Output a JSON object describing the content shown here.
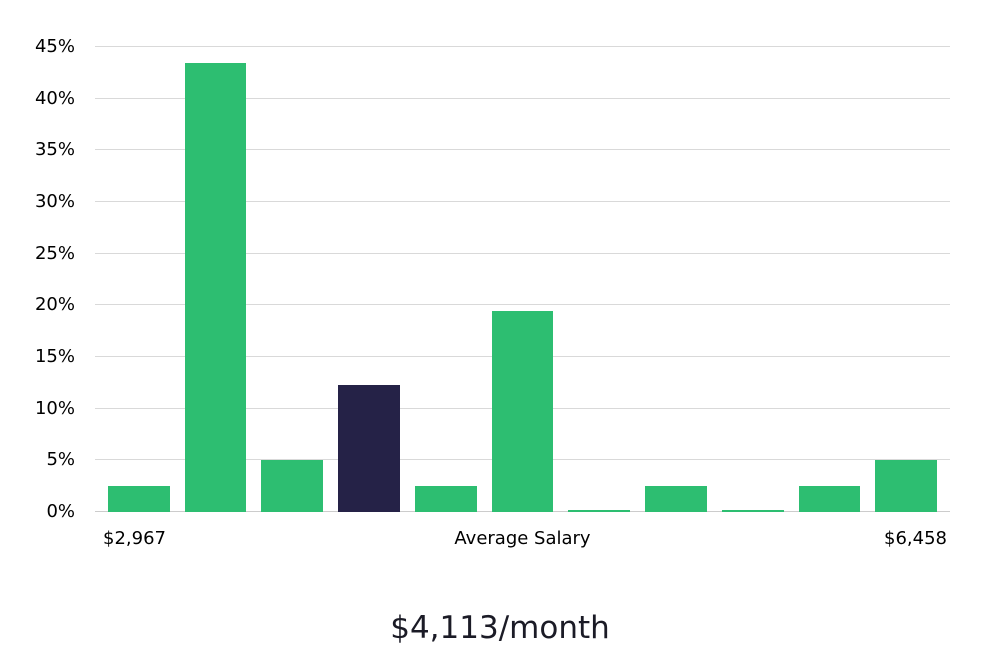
{
  "chart_data": {
    "type": "bar",
    "title": "$4,113/month",
    "values": [
      2.5,
      43.5,
      5,
      12.3,
      2.5,
      19.5,
      0.2,
      2.5,
      0.2,
      2.5,
      5
    ],
    "highlight_index": 3,
    "bar_color": "#2dbe71",
    "highlight_color": "#252247",
    "ylim": [
      0,
      45
    ],
    "ytick_step": 5,
    "yticks": [
      "0%",
      "5%",
      "10%",
      "15%",
      "20%",
      "25%",
      "30%",
      "35%",
      "40%",
      "45%"
    ],
    "x_left_label": "$2,967",
    "x_center_label": "Average Salary",
    "x_right_label": "$6,458",
    "grid": true,
    "legend_position": "none",
    "xlabel": "",
    "ylabel": ""
  }
}
